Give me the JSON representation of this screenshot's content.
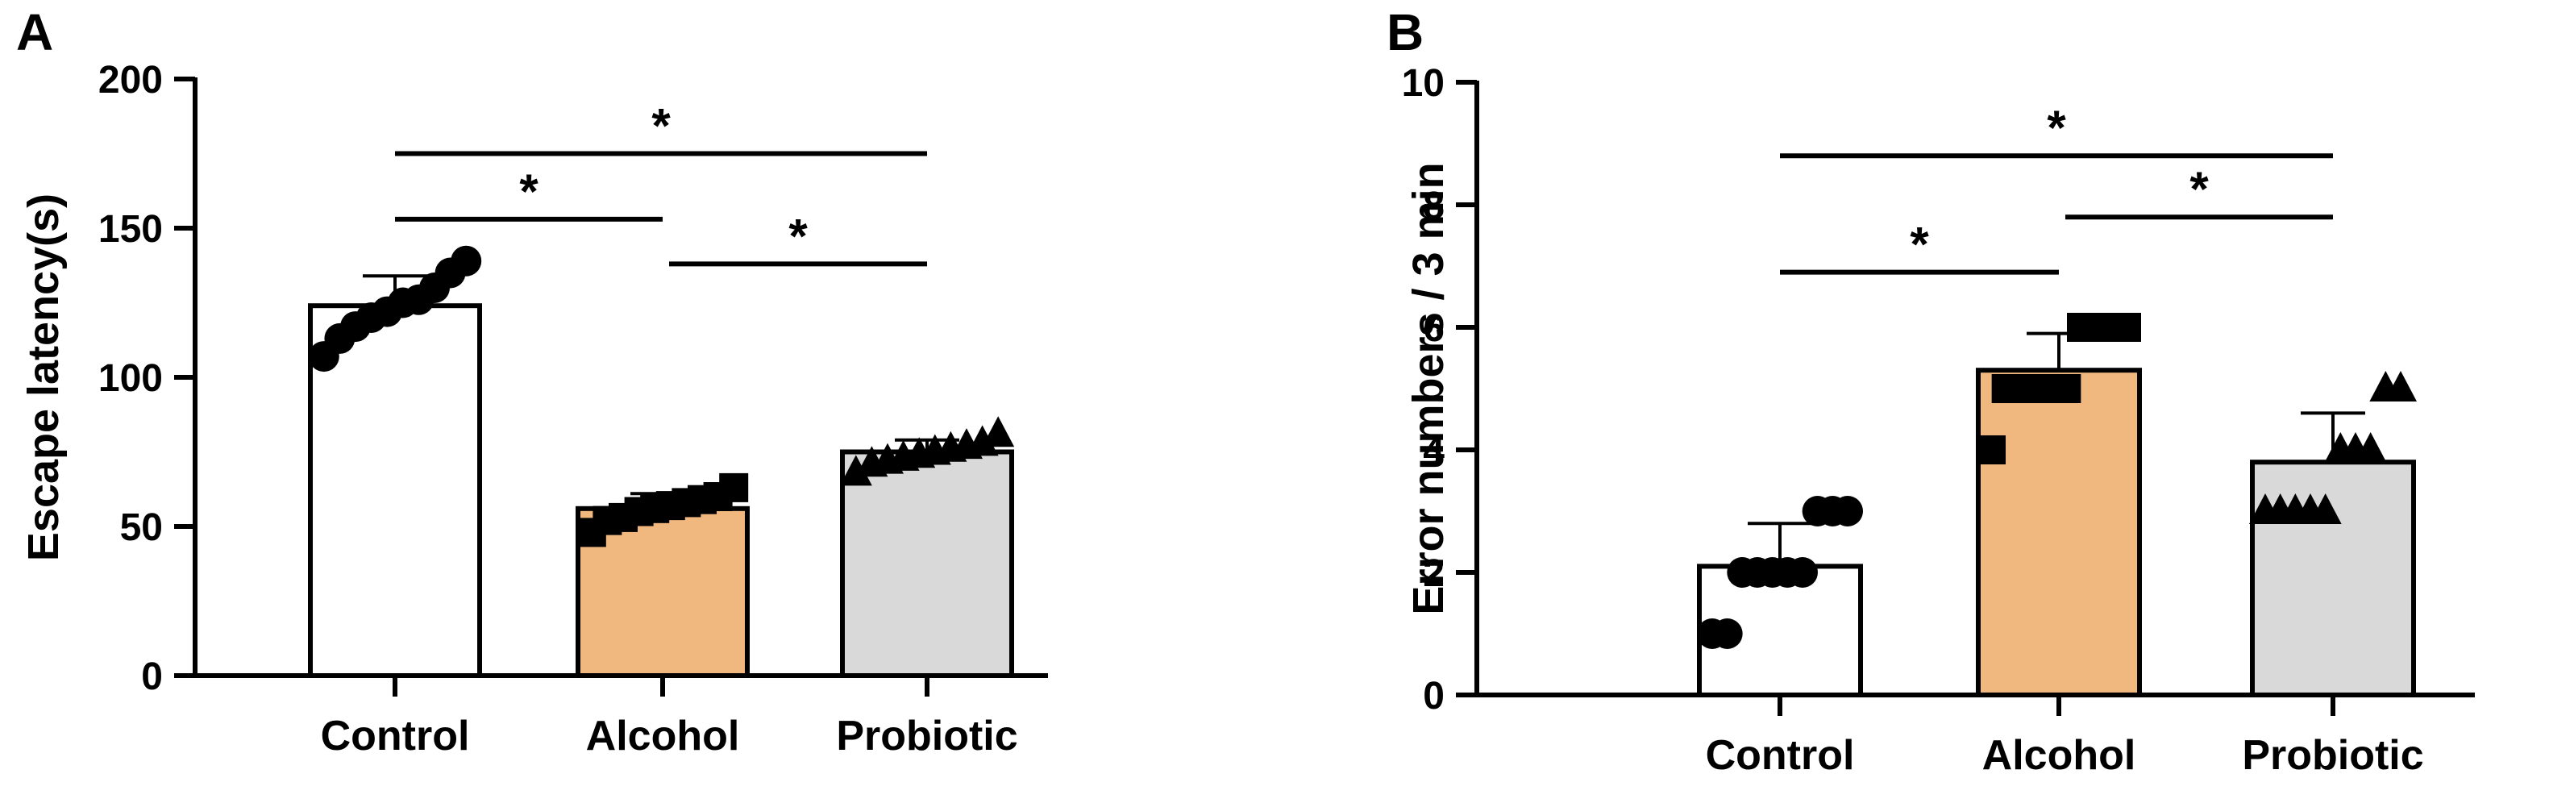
{
  "chart_data": [
    {
      "type": "bar",
      "panel_label": "A",
      "ylabel": "Escape latency(s)",
      "ylim": [
        0,
        200
      ],
      "yticks": [
        0,
        50,
        100,
        150,
        200
      ],
      "categories": [
        "Control",
        "Alcohol",
        "Probiotic"
      ],
      "values": [
        124,
        56,
        75
      ],
      "errors": [
        10,
        5,
        4
      ],
      "bar_colors": [
        "#ffffff",
        "#f0b77e",
        "#d9d9d9"
      ],
      "markers": [
        "circle",
        "square",
        "triangle"
      ],
      "points": [
        [
          107,
          113,
          117,
          120,
          122,
          125,
          126,
          130,
          135,
          139
        ],
        [
          48,
          52,
          53,
          55,
          56,
          57,
          58,
          59,
          60,
          63
        ],
        [
          68,
          71,
          72,
          73,
          74,
          75,
          76,
          77,
          78,
          81
        ]
      ],
      "significance": [
        {
          "from": 0,
          "to": 1,
          "label": "*",
          "y": 153
        },
        {
          "from": 1,
          "to": 2,
          "label": "*",
          "y": 138
        },
        {
          "from": 0,
          "to": 2,
          "label": "*",
          "y": 175
        }
      ]
    },
    {
      "type": "bar",
      "panel_label": "B",
      "ylabel": "Error numbers / 3 min",
      "ylim": [
        0,
        10
      ],
      "yticks": [
        0,
        2,
        4,
        6,
        8,
        10
      ],
      "categories": [
        "Control",
        "Alcohol",
        "Probiotic"
      ],
      "values": [
        2.1,
        5.3,
        3.8
      ],
      "errors": [
        0.7,
        0.6,
        0.8
      ],
      "bar_colors": [
        "#ffffff",
        "#f0b77e",
        "#d9d9d9"
      ],
      "markers": [
        "circle",
        "square",
        "triangle"
      ],
      "points": [
        [
          1,
          1,
          2,
          2,
          2,
          2,
          2,
          3,
          3,
          3
        ],
        [
          4,
          5,
          5,
          5,
          5,
          5,
          6,
          6,
          6,
          6
        ],
        [
          3,
          3,
          3,
          3,
          3,
          4,
          4,
          4,
          5,
          5
        ]
      ],
      "significance": [
        {
          "from": 0,
          "to": 1,
          "label": "*",
          "y": 6.9
        },
        {
          "from": 1,
          "to": 2,
          "label": "*",
          "y": 7.8
        },
        {
          "from": 0,
          "to": 2,
          "label": "*",
          "y": 8.8
        }
      ]
    }
  ]
}
